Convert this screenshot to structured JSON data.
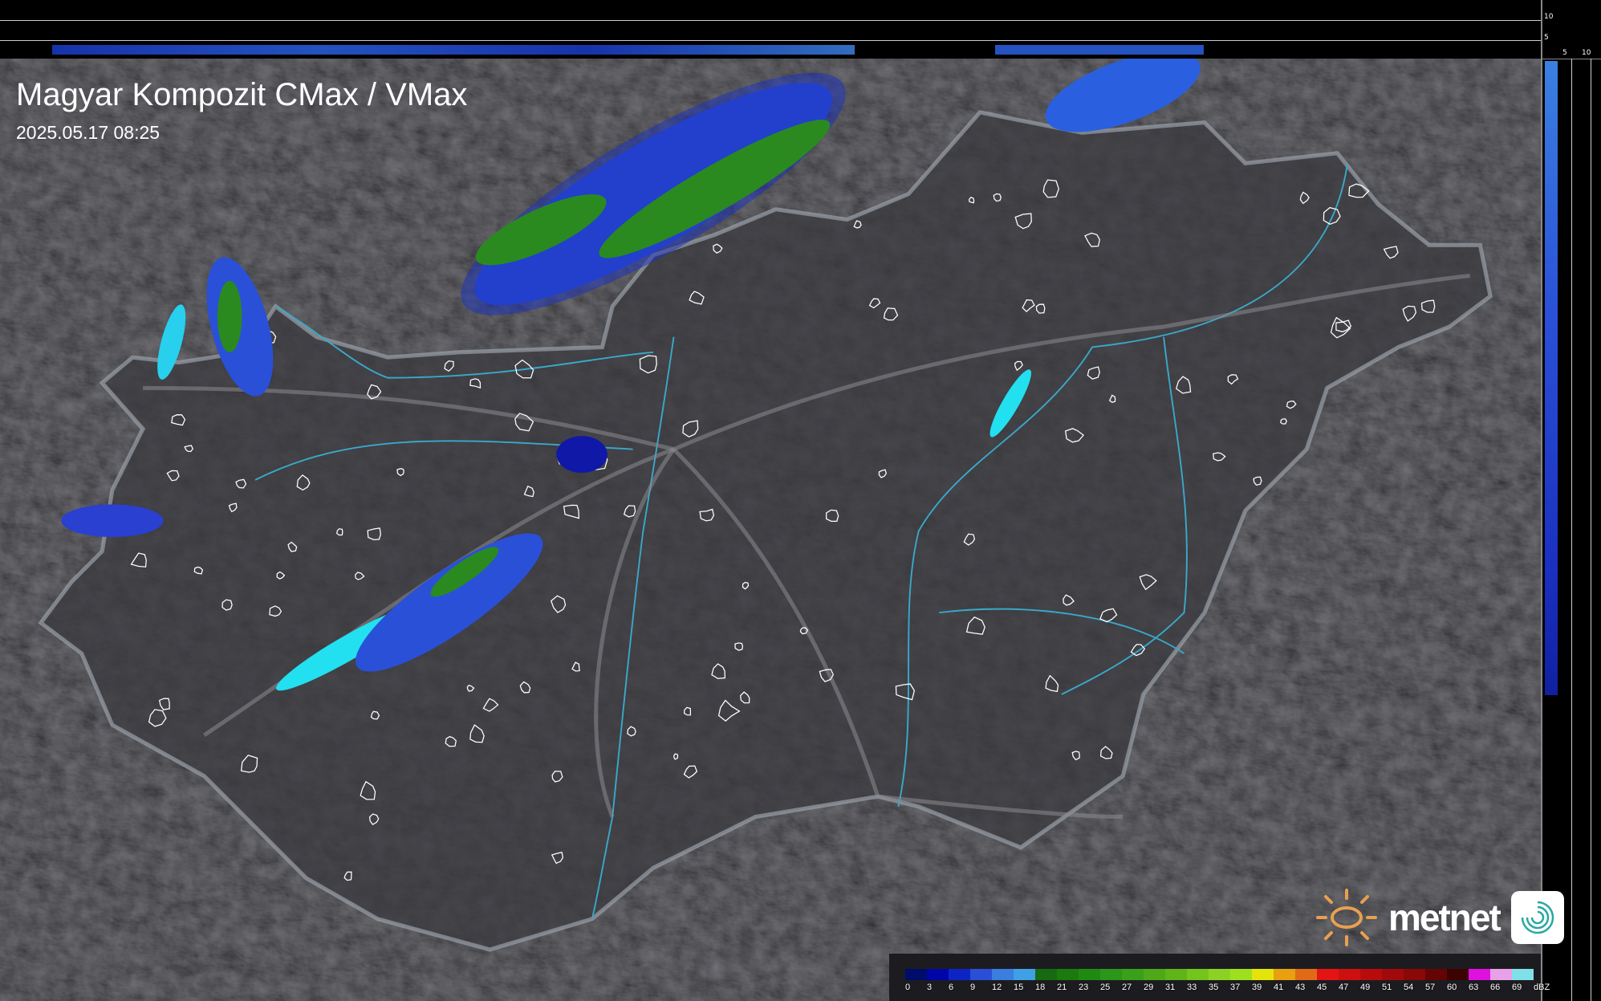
{
  "title": "Magyar Kompozit CMax / VMax",
  "timestamp": "2025.05.17 08:25",
  "side_profile": {
    "top_ticks": [
      "10",
      "5"
    ],
    "right_ticks": [
      "5",
      "10"
    ]
  },
  "legend": {
    "unit": "dBZ",
    "labels": [
      "0",
      "3",
      "6",
      "9",
      "12",
      "15",
      "18",
      "21",
      "23",
      "25",
      "27",
      "29",
      "31",
      "33",
      "35",
      "37",
      "39",
      "41",
      "43",
      "45",
      "47",
      "49",
      "51",
      "54",
      "57",
      "60",
      "63",
      "66",
      "69"
    ],
    "colors": [
      "#000c6a",
      "#0005a8",
      "#0d24c4",
      "#2a4fd6",
      "#3a7ee0",
      "#3fa0e6",
      "#166a10",
      "#1a7a0e",
      "#1f8a12",
      "#2a961a",
      "#3aa01a",
      "#4ea818",
      "#5fb418",
      "#74c41c",
      "#8cd224",
      "#9ee020",
      "#e4e40a",
      "#e8a010",
      "#e06a18",
      "#e41414",
      "#cc1010",
      "#b80c0c",
      "#a00a0a",
      "#8a0808",
      "#640404",
      "#3c0202",
      "#e010e0",
      "#e8a0e8",
      "#80e0e8"
    ]
  },
  "brand": {
    "name": "metnet",
    "sun_color": "#e8a050",
    "icon_color": "#2aa8a0"
  }
}
